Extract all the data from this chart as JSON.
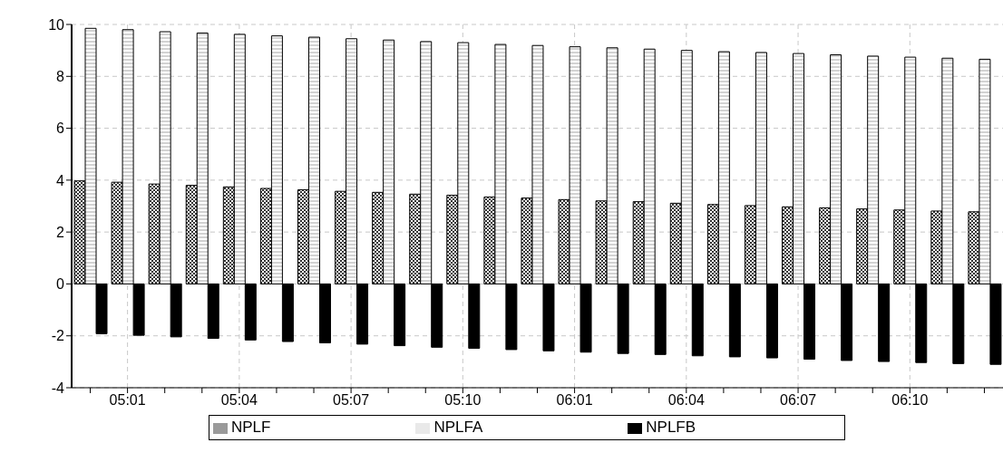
{
  "chart_data": {
    "type": "bar",
    "categories": [
      null,
      "05:01",
      null,
      null,
      "05:04",
      null,
      null,
      "05:07",
      null,
      null,
      "05:10",
      null,
      null,
      "06:01",
      null,
      null,
      "06:04",
      null,
      null,
      "06:07",
      null,
      null,
      "06:10",
      null,
      null
    ],
    "series": [
      {
        "name": "NPLF",
        "color": "#000000",
        "values": [
          3.97,
          3.92,
          3.85,
          3.8,
          3.74,
          3.68,
          3.63,
          3.57,
          3.53,
          3.46,
          3.42,
          3.35,
          3.31,
          3.25,
          3.2,
          3.17,
          3.11,
          3.06,
          3.02,
          2.97,
          2.93,
          2.89,
          2.85,
          2.81,
          2.78
        ]
      },
      {
        "name": "NPLFA",
        "color": "#000000",
        "values": [
          9.85,
          9.8,
          9.72,
          9.67,
          9.62,
          9.56,
          9.51,
          9.45,
          9.4,
          9.34,
          9.3,
          9.23,
          9.19,
          9.14,
          9.1,
          9.05,
          9.0,
          8.95,
          8.92,
          8.88,
          8.83,
          8.78,
          8.74,
          8.7,
          8.66
        ]
      },
      {
        "name": "NPLFB",
        "color": "#000000",
        "values": [
          -1.92,
          -1.98,
          -2.04,
          -2.1,
          -2.16,
          -2.22,
          -2.27,
          -2.32,
          -2.38,
          -2.44,
          -2.48,
          -2.53,
          -2.58,
          -2.63,
          -2.68,
          -2.72,
          -2.77,
          -2.81,
          -2.85,
          -2.9,
          -2.95,
          -2.99,
          -3.03,
          -3.07,
          -3.1
        ]
      }
    ],
    "ylim": [
      -4,
      10
    ],
    "yticks": [
      -4,
      -2,
      0,
      2,
      4,
      6,
      8,
      10
    ],
    "grid": true,
    "legend": "bottom"
  }
}
